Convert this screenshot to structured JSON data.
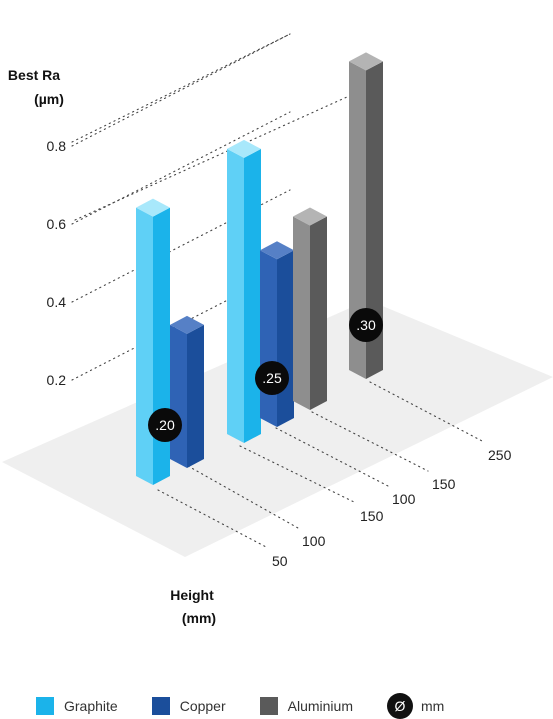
{
  "chart_data": {
    "type": "bar",
    "subtype": "3d-grouped-bar",
    "ylabel": [
      "Best Ra",
      "(µm)"
    ],
    "xlabel": [
      "Height",
      "(mm)"
    ],
    "ylim": [
      0,
      0.9
    ],
    "yticks": [
      "0.2",
      "0.4",
      "0.6",
      "0.8"
    ],
    "heights": [
      "50",
      "100",
      "150",
      "100",
      "150",
      "250"
    ],
    "groups": [
      {
        "diameter_label": ".20",
        "bars": [
          {
            "material": "Graphite",
            "height": "50",
            "value": 0.8
          },
          {
            "material": "Copper",
            "height": "100",
            "value": 0.4
          }
        ]
      },
      {
        "diameter_label": ".25",
        "bars": [
          {
            "material": "Graphite",
            "height": "150",
            "value": 0.85
          },
          {
            "material": "Copper",
            "height": "100",
            "value": 0.5
          }
        ]
      },
      {
        "diameter_label": ".30",
        "bars": [
          {
            "material": "Aluminium",
            "height": "150",
            "value": 0.55
          },
          {
            "material": "Aluminium",
            "height": "250",
            "value": 0.92
          }
        ]
      }
    ],
    "legend": [
      {
        "name": "Graphite",
        "color": "#1bb3ea"
      },
      {
        "name": "Copper",
        "color": "#1b4e9b"
      },
      {
        "name": "Aluminium",
        "color": "#5a5a5a"
      }
    ],
    "legend_diameter": {
      "symbol": "Ø",
      "label": "mm"
    },
    "colors": {
      "Graphite": [
        "#1bb3ea",
        "#5fd0f6",
        "#a8e8fb"
      ],
      "Copper": [
        "#1b4e9b",
        "#2f63b5",
        "#5680c6"
      ],
      "Aluminium": [
        "#5a5a5a",
        "#8e8e8e",
        "#b4b4b4"
      ]
    }
  }
}
